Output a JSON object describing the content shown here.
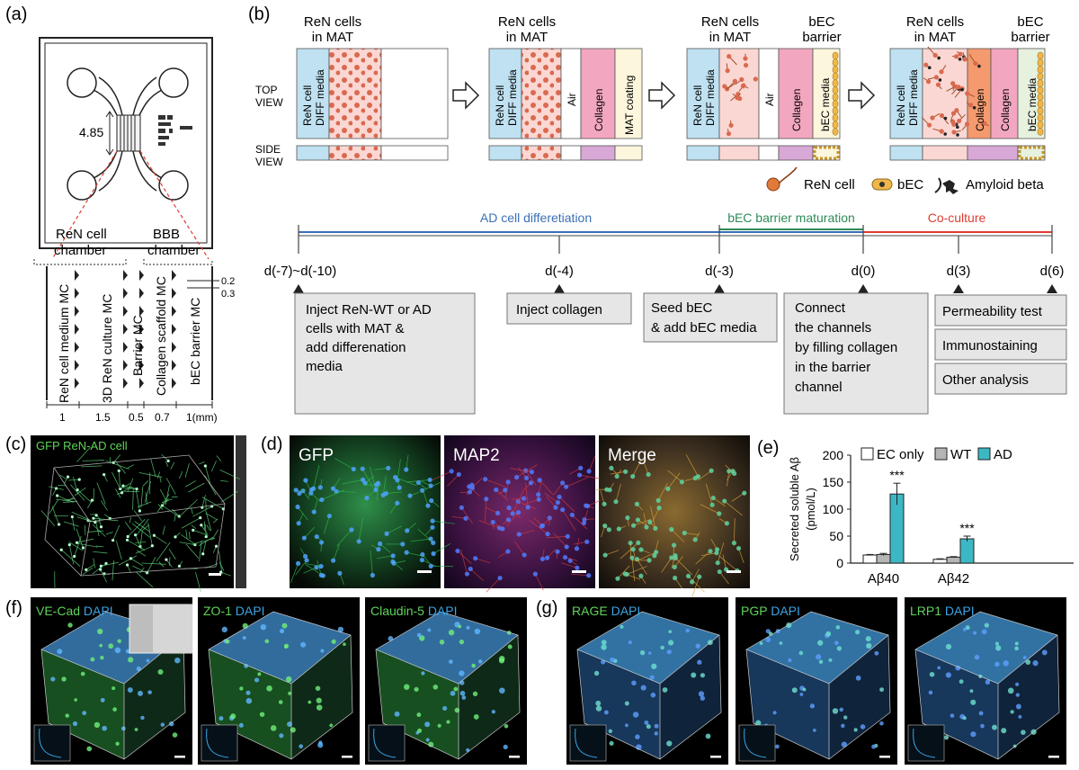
{
  "panel_labels": {
    "a": "(a)",
    "b": "(b)",
    "c": "(c)",
    "d": "(d)",
    "e": "(e)",
    "f": "(f)",
    "g": "(g)"
  },
  "panel_a": {
    "dimension": "4.85",
    "ren_chamber": [
      "ReN cell",
      "chamber"
    ],
    "bbb_chamber": [
      "BBB",
      "chamber"
    ],
    "channels": [
      "ReN cell medium MC",
      "3D ReN culture MC",
      "Barrier MC",
      "Collagen scaffold MC",
      "bEC barrier MC"
    ],
    "widths": [
      "1",
      "1.5",
      "0.5",
      "0.7",
      "1(mm)"
    ],
    "gaps": [
      "0.2",
      "0.3"
    ]
  },
  "panel_b": {
    "view_labels": {
      "top": [
        "TOP",
        "VIEW"
      ],
      "side": [
        "SIDE",
        "VIEW"
      ]
    },
    "ren_heading": [
      "ReN cells",
      "in MAT"
    ],
    "bec_heading": [
      "bEC",
      "barrier"
    ],
    "channel_labels": {
      "ren_media": [
        "ReN cell",
        "DIFF media"
      ],
      "air": "Air",
      "collagen": "Collagen",
      "mat_coating": "MAT coating",
      "bec_media": "bEC media"
    },
    "legend": {
      "ren_cell": "ReN cell",
      "bec": "bEC",
      "amyloid": "Amyloid beta"
    },
    "phases": {
      "ad": "AD cell differetiation",
      "bec": "bEC barrier maturation",
      "co": "Co-culture"
    },
    "phase_colors": {
      "ad": "#3b6fb6",
      "bec": "#2e8b57",
      "co": "#e03c31"
    },
    "days": [
      "d(-7)~d(-10)",
      "d(-4)",
      "d(-3)",
      "d(0)",
      "d(3)",
      "d(6)"
    ],
    "steps": {
      "inject_ren": [
        "Inject ReN-WT or AD",
        "cells with MAT &",
        "add differenation",
        "media"
      ],
      "inject_collagen": [
        "Inject collagen"
      ],
      "seed_bec": [
        "Seed bEC",
        "& add bEC media"
      ],
      "connect": [
        "Connect",
        "the channels",
        "by filling collagen",
        "in the barrier",
        "channel"
      ],
      "permeability": [
        "Permeability test"
      ],
      "immuno": [
        "Immunostaining"
      ],
      "other": [
        "Other analysis"
      ]
    }
  },
  "panel_c": {
    "label_gfp": "GFP",
    "label_rest": " ReN-AD cell"
  },
  "panel_d": {
    "tiles": [
      "GFP",
      "MAP2",
      "Merge"
    ]
  },
  "panel_f": {
    "tiles": [
      {
        "green": "VE-Cad",
        "blue": " DAPI"
      },
      {
        "green": "ZO-1",
        "blue": " DAPI"
      },
      {
        "green": "Claudin-5",
        "blue": " DAPI"
      }
    ]
  },
  "panel_g": {
    "tiles": [
      {
        "green": "RAGE",
        "blue": " DAPI"
      },
      {
        "green": "PGP",
        "blue": " DAPI"
      },
      {
        "green": "LRP1",
        "blue": " DAPI"
      }
    ]
  },
  "colors": {
    "ec_only": "#ffffff",
    "wt": "#b5b5b5",
    "ad": "#3cb8c4",
    "green_label": "#5fd35a",
    "blue_label": "#3aa4e6"
  },
  "chart_data": {
    "type": "bar",
    "ylabel": "Secreted soluble Aβ\n(pmol/L)",
    "ylim": [
      0,
      200
    ],
    "yticks": [
      0,
      50,
      100,
      150,
      200
    ],
    "categories": [
      "Aβ40",
      "Aβ42"
    ],
    "series": [
      {
        "name": "EC only",
        "values": [
          15,
          7
        ],
        "errors": [
          1,
          1
        ]
      },
      {
        "name": "WT",
        "values": [
          16,
          11
        ],
        "errors": [
          2,
          1
        ]
      },
      {
        "name": "AD",
        "values": [
          128,
          45
        ],
        "errors": [
          20,
          5
        ]
      }
    ],
    "significance": [
      "***",
      "***"
    ],
    "legend_position": "top"
  }
}
